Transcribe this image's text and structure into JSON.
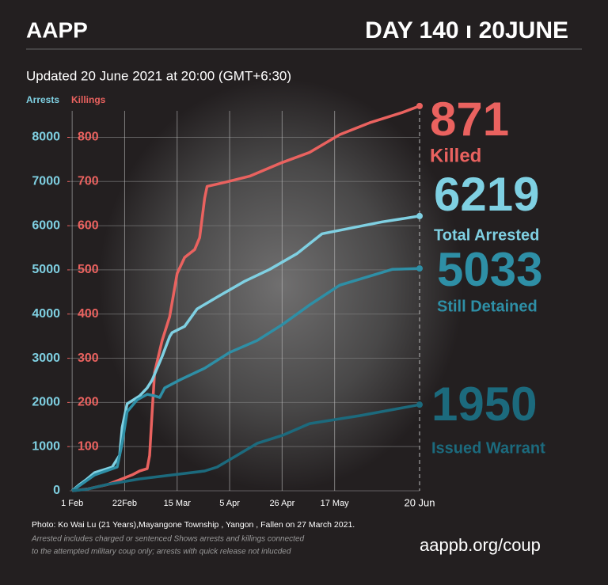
{
  "header": {
    "brand": "AAPP",
    "day": "DAY 140 ı 20JUNE"
  },
  "chart_data": {
    "type": "line",
    "subtitle": "Updated 20 June 2021 at 20:00 (GMT+6:30)",
    "y_label": "Arrests",
    "y2_label": "Killings",
    "xlim": [
      0,
      140
    ],
    "xticks": [
      {
        "value": 1,
        "label": "1 Feb"
      },
      {
        "value": 22,
        "label": "22Feb"
      },
      {
        "value": 43,
        "label": "15 Mar"
      },
      {
        "value": 64,
        "label": "5 Apr"
      },
      {
        "value": 85,
        "label": "26 Apr"
      },
      {
        "value": 106,
        "label": "17 May"
      },
      {
        "value": 140,
        "label": "20 Jun"
      }
    ],
    "ylim": [
      0,
      8600
    ],
    "yticks": [
      0,
      1000,
      2000,
      3000,
      4000,
      5000,
      6000,
      7000,
      8000
    ],
    "y2lim": [
      0,
      860
    ],
    "y2ticks": [
      100,
      200,
      300,
      400,
      500,
      600,
      700,
      800
    ],
    "grid": true,
    "series": [
      {
        "name": "Killed",
        "color": "#ea625f",
        "axis": "y2",
        "x": [
          1,
          7,
          15,
          21,
          25,
          28,
          31,
          32,
          33,
          34,
          37,
          40,
          43,
          46,
          50,
          52,
          54,
          55,
          62,
          72,
          85,
          96,
          108,
          120,
          133,
          140
        ],
        "values": [
          0,
          4,
          14,
          27,
          36,
          45,
          50,
          80,
          179,
          268,
          340,
          394,
          492,
          528,
          546,
          573,
          662,
          689,
          698,
          712,
          743,
          766,
          806,
          833,
          856,
          871
        ]
      },
      {
        "name": "Total Arrested",
        "color": "#7fd0e2",
        "x": [
          1,
          4,
          7,
          10,
          17,
          20,
          21,
          23,
          28,
          31,
          33,
          37,
          40,
          41,
          46,
          51,
          59,
          70,
          80,
          91,
          101,
          125,
          140
        ],
        "values": [
          0,
          143,
          269,
          412,
          537,
          805,
          1432,
          1969,
          2148,
          2327,
          2506,
          3043,
          3490,
          3580,
          3722,
          4117,
          4385,
          4743,
          5012,
          5370,
          5817,
          6086,
          6219
        ]
      },
      {
        "name": "Still Detained",
        "color": "#2e8fa6",
        "x": [
          1,
          10,
          19,
          21,
          23,
          27,
          31,
          34,
          36,
          38,
          44,
          54,
          64,
          75,
          85,
          96,
          108,
          129,
          140
        ],
        "values": [
          0,
          358,
          537,
          1074,
          1790,
          2058,
          2184,
          2148,
          2112,
          2327,
          2506,
          2774,
          3132,
          3401,
          3759,
          4206,
          4653,
          5012,
          5033
        ]
      },
      {
        "name": "Issued Warrant",
        "color": "#1c6a7d",
        "x": [
          1,
          7,
          15,
          28,
          41,
          54,
          59,
          67,
          75,
          85,
          96,
          116,
          140
        ],
        "values": [
          0,
          36,
          143,
          269,
          358,
          448,
          537,
          805,
          1074,
          1253,
          1521,
          1700,
          1950
        ]
      }
    ]
  },
  "footer": {
    "photo_credit": "Photo: Ko Wai Lu (21 Years),Mayangone Township , Yangon , Fallen on 27 March 2021.",
    "notes": [
      "Arrested includes charged or sentenced Shows arrests and killings connected",
      "to the attempted military coup only; arrests with quick release not inlucded"
    ],
    "url": "aappb.org/coup"
  }
}
